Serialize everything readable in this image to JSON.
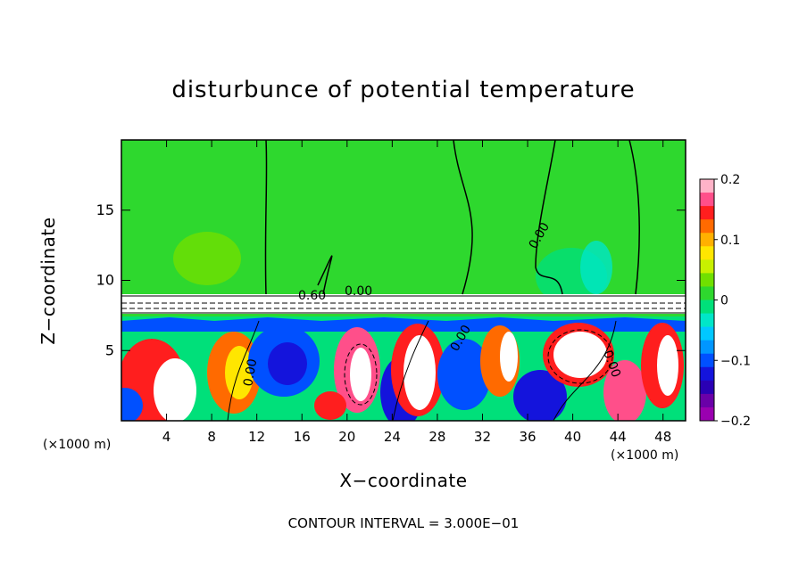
{
  "chart_data": {
    "type": "heatmap",
    "title": "disturbunce of potential temperature",
    "xlabel": "X−coordinate",
    "ylabel": "Z−coordinate",
    "x_unit_labels": [
      "(×1000 m)",
      "(×1000 m)"
    ],
    "footer": "CONTOUR INTERVAL = 3.000E−01",
    "xlim": [
      0,
      50
    ],
    "ylim": [
      0,
      20
    ],
    "x_ticks": [
      4,
      8,
      12,
      16,
      20,
      24,
      28,
      32,
      36,
      40,
      44,
      48
    ],
    "y_ticks": [
      5,
      10,
      15
    ],
    "colorbar": {
      "range": [
        -0.2,
        0.2
      ],
      "tick_labels": [
        "0.2",
        "0.1",
        "0",
        "−0.1",
        "−0.2"
      ],
      "tick_values": [
        0.2,
        0.1,
        0,
        -0.1,
        -0.2
      ],
      "colors": [
        "#ffb3c8",
        "#ff4f8a",
        "#ff1e1e",
        "#ff6a00",
        "#ffb000",
        "#ffe600",
        "#c8f000",
        "#70e000",
        "#2ed82e",
        "#00e07a",
        "#00e6c8",
        "#00c8ff",
        "#0096ff",
        "#0050ff",
        "#1414dc",
        "#2a00b4",
        "#6a00a8",
        "#9a00b0"
      ]
    },
    "contour_labels": [
      "0.00",
      "0.00",
      "0.00",
      "0.00",
      "0.00",
      "0.60"
    ],
    "grid": false
  }
}
